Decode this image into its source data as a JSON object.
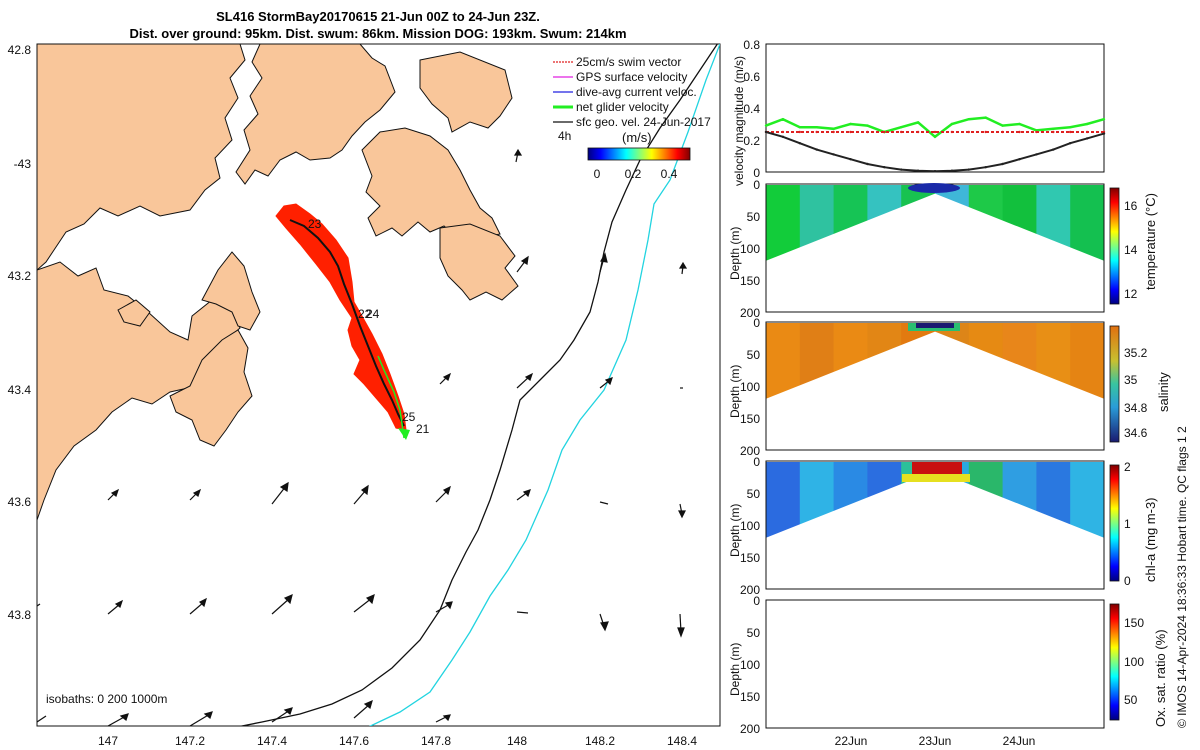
{
  "title_line1": "SL416 StormBay20170615 21-Jun 00Z to 24-Jun 23Z.",
  "title_line2": "Dist. over ground: 95km. Dist. swum: 86km. Mission DOG: 193km. Swum: 214km",
  "legend": {
    "items": [
      {
        "label": "25cm/s swim vector",
        "color": "#e02020"
      },
      {
        "label": "GPS surface velocity",
        "color": "#e020e0"
      },
      {
        "label": "dive-avg current veloc.",
        "color": "#2020e0"
      },
      {
        "label": "net glider velocity",
        "color": "#20e020"
      },
      {
        "label": "sfc geo. vel. 24-Jun-2017",
        "color": "#111111"
      }
    ],
    "time_marker": "4h",
    "colorbar_label": "(m/s)",
    "colorbar_ticks": [
      "0",
      "0.2",
      "0.4"
    ]
  },
  "map": {
    "lat_ticks": [
      "42.8",
      "-43",
      "43.2",
      "43.4",
      "43.6",
      "43.8"
    ],
    "lon_ticks": [
      "147",
      "147.2",
      "147.4",
      "147.6",
      "147.8",
      "148",
      "148.2",
      "148.4"
    ],
    "isobath_label": "isobaths: 0   200  1000m",
    "track_labels": [
      "23",
      "22",
      "24",
      "25",
      "21"
    ],
    "colors": {
      "land": "#f9c69a",
      "track": "#ff2000",
      "isobath_200": "#111111",
      "isobath_1000": "#22d4e0"
    }
  },
  "chart_data": [
    {
      "type": "line",
      "title": "",
      "ylabel": "velocity magnitude (m/s)",
      "ylim": [
        0,
        0.8
      ],
      "yticks": [
        "0",
        "0.2",
        "0.4",
        "0.6",
        "0.8"
      ],
      "x": [
        0,
        5,
        10,
        15,
        20,
        25,
        30,
        35,
        40,
        45,
        50,
        55,
        60,
        65,
        70,
        75,
        80,
        85,
        90,
        95,
        100
      ],
      "series": [
        {
          "name": "net glider velocity",
          "color": "#22ee22",
          "values": [
            0.29,
            0.33,
            0.28,
            0.28,
            0.27,
            0.3,
            0.29,
            0.25,
            0.28,
            0.31,
            0.22,
            0.3,
            0.33,
            0.34,
            0.29,
            0.3,
            0.26,
            0.27,
            0.28,
            0.3,
            0.33
          ]
        },
        {
          "name": "25cm/s swim vector",
          "color": "#e02020",
          "values": [
            0.25,
            0.25,
            0.25,
            0.25,
            0.25,
            0.25,
            0.25,
            0.25,
            0.25,
            0.25,
            0.25,
            0.25,
            0.25,
            0.25,
            0.25,
            0.25,
            0.25,
            0.25,
            0.25,
            0.25,
            0.25
          ]
        },
        {
          "name": "sfc geo. vel.",
          "color": "#222222",
          "values": [
            0.25,
            0.22,
            0.18,
            0.14,
            0.11,
            0.08,
            0.05,
            0.03,
            0.015,
            0.008,
            0.005,
            0.008,
            0.015,
            0.03,
            0.05,
            0.08,
            0.11,
            0.14,
            0.18,
            0.21,
            0.24
          ]
        }
      ]
    },
    {
      "type": "heatmap",
      "ylabel": "Depth (m)",
      "colorbar_label": "temperature (°C)",
      "ylim": [
        200,
        0
      ],
      "yticks": [
        "0",
        "50",
        "100",
        "150",
        "200"
      ],
      "colorbar_ticks": [
        "12",
        "14",
        "16"
      ],
      "clim": [
        11.5,
        16.8
      ],
      "profile_depth_x": [
        0,
        50,
        100
      ],
      "profile_depth_y": [
        120,
        15,
        120
      ],
      "colors": [
        "#12cc3a",
        "#2fc2a0",
        "#16c455",
        "#35c2c0",
        "#18c250",
        "#3fb7d8",
        "#1ec948",
        "#12c03d",
        "#30c8b0",
        "#14c050"
      ]
    },
    {
      "type": "heatmap",
      "ylabel": "Depth (m)",
      "colorbar_label": "salinity",
      "ylim": [
        200,
        0
      ],
      "yticks": [
        "0",
        "50",
        "100",
        "150",
        "200"
      ],
      "colorbar_ticks": [
        "34.6",
        "34.8",
        "35",
        "35.2"
      ],
      "clim": [
        34.5,
        35.3
      ],
      "profile_depth_x": [
        0,
        50,
        100
      ],
      "profile_depth_y": [
        120,
        15,
        120
      ],
      "colors": [
        "#ea8a14",
        "#e07f16",
        "#ea8a14",
        "#e28615",
        "#e27a10",
        "#dd8518",
        "#e68a13",
        "#e8861a",
        "#e88f15",
        "#e58413"
      ]
    },
    {
      "type": "heatmap",
      "ylabel": "Depth (m)",
      "colorbar_label": "chl-a (mg m-3)",
      "ylim": [
        200,
        0
      ],
      "yticks": [
        "0",
        "50",
        "100",
        "150",
        "200"
      ],
      "colorbar_ticks": [
        "0",
        "1",
        "2"
      ],
      "clim": [
        0,
        2
      ],
      "profile_depth_x": [
        0,
        50,
        100
      ],
      "profile_depth_y": [
        120,
        15,
        120
      ],
      "colors": [
        "#2b6be0",
        "#2fb3e6",
        "#2a8ae4",
        "#2b6ee0",
        "#2bc09a",
        "#2aa8e0",
        "#2ab76a",
        "#2f9ee2",
        "#2a78e0",
        "#2fb4e4"
      ]
    },
    {
      "type": "heatmap",
      "ylabel": "Depth (m)",
      "colorbar_label": "Ox. sat. ratio (%)",
      "ylim": [
        200,
        0
      ],
      "yticks": [
        "0",
        "50",
        "100",
        "150",
        "200"
      ],
      "colorbar_ticks": [
        "50",
        "100",
        "150"
      ],
      "clim": [
        25,
        175
      ],
      "xticks": [
        "22Jun",
        "23Jun",
        "24Jun"
      ],
      "colors": []
    }
  ],
  "footer_vertical": "© IMOS 14-Apr-2024 18:36:33 Hobart time. QC flags 1  2"
}
